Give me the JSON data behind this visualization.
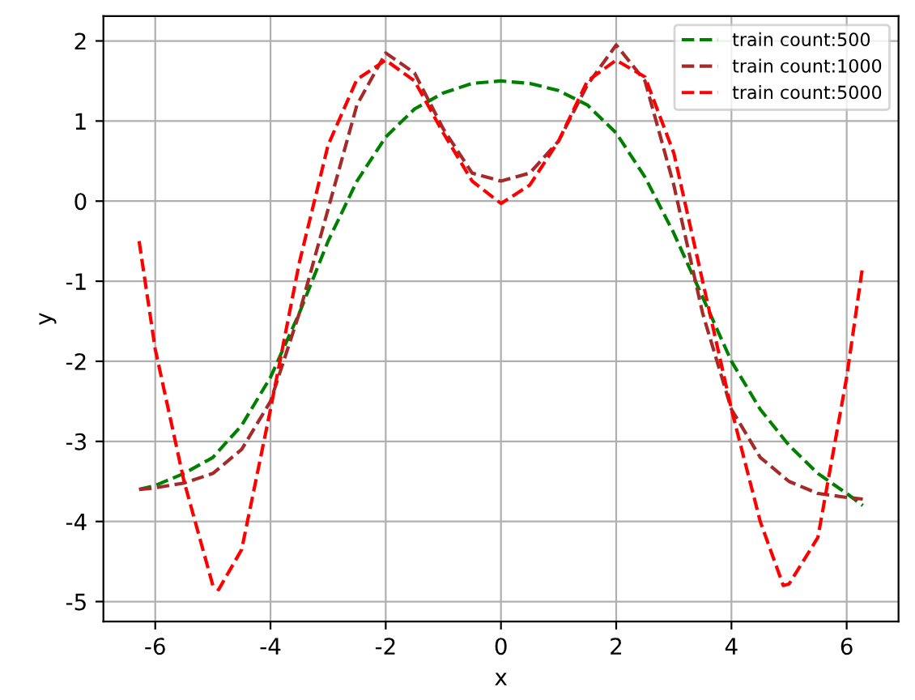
{
  "chart_data": {
    "type": "line",
    "xlabel": "x",
    "ylabel": "y",
    "xlim": [
      -6.9,
      6.9
    ],
    "ylim": [
      -5.25,
      2.31
    ],
    "xticks": [
      -6,
      -4,
      -2,
      0,
      2,
      4,
      6
    ],
    "yticks": [
      -5,
      -4,
      -3,
      -2,
      -1,
      0,
      1,
      2
    ],
    "grid": true,
    "legend": "top right",
    "line_style": "dashed",
    "marker": "none",
    "x": [
      -6.28,
      -6,
      -5.5,
      -5,
      -4.5,
      -4,
      -3.5,
      -3,
      -2.5,
      -2,
      -1.5,
      -1,
      -0.5,
      0,
      0.5,
      1,
      1.5,
      2,
      2.5,
      3,
      3.5,
      4,
      4.5,
      5,
      5.5,
      6,
      6.28
    ],
    "series": [
      {
        "name": "train count:500",
        "color": "#008000",
        "values": [
          -3.6,
          -3.55,
          -3.4,
          -3.2,
          -2.8,
          -2.2,
          -1.4,
          -0.5,
          0.25,
          0.8,
          1.15,
          1.35,
          1.47,
          1.5,
          1.47,
          1.38,
          1.2,
          0.85,
          0.3,
          -0.4,
          -1.2,
          -2.0,
          -2.6,
          -3.05,
          -3.4,
          -3.65,
          -3.8
        ]
      },
      {
        "name": "train count:1000",
        "color": "#a52a2a",
        "values": [
          -3.6,
          -3.58,
          -3.52,
          -3.4,
          -3.1,
          -2.5,
          -1.4,
          -0.1,
          1.2,
          1.85,
          1.6,
          0.9,
          0.35,
          0.25,
          0.35,
          0.75,
          1.45,
          1.95,
          1.5,
          0.2,
          -1.4,
          -2.6,
          -3.2,
          -3.5,
          -3.65,
          -3.7,
          -3.72
        ]
      },
      {
        "name": "train count:5000",
        "color": "#ff0000",
        "x": [
          -6.28,
          -6,
          -5.5,
          -5,
          -4.9,
          -4.5,
          -4,
          -3.5,
          -3,
          -2.5,
          -2,
          -1.5,
          -1,
          -0.5,
          0,
          0.5,
          1,
          1.5,
          2,
          2.5,
          3,
          3.5,
          4,
          4.5,
          4.9,
          5,
          5.5,
          6,
          6.28
        ],
        "values": [
          -0.5,
          -1.85,
          -3.5,
          -4.8,
          -4.85,
          -4.35,
          -2.6,
          -0.77,
          0.7,
          1.52,
          1.76,
          1.5,
          0.85,
          0.25,
          -0.03,
          0.2,
          0.75,
          1.5,
          1.76,
          1.55,
          0.6,
          -1.0,
          -2.6,
          -4.0,
          -4.8,
          -4.78,
          -4.2,
          -2.2,
          -0.8
        ]
      }
    ]
  }
}
